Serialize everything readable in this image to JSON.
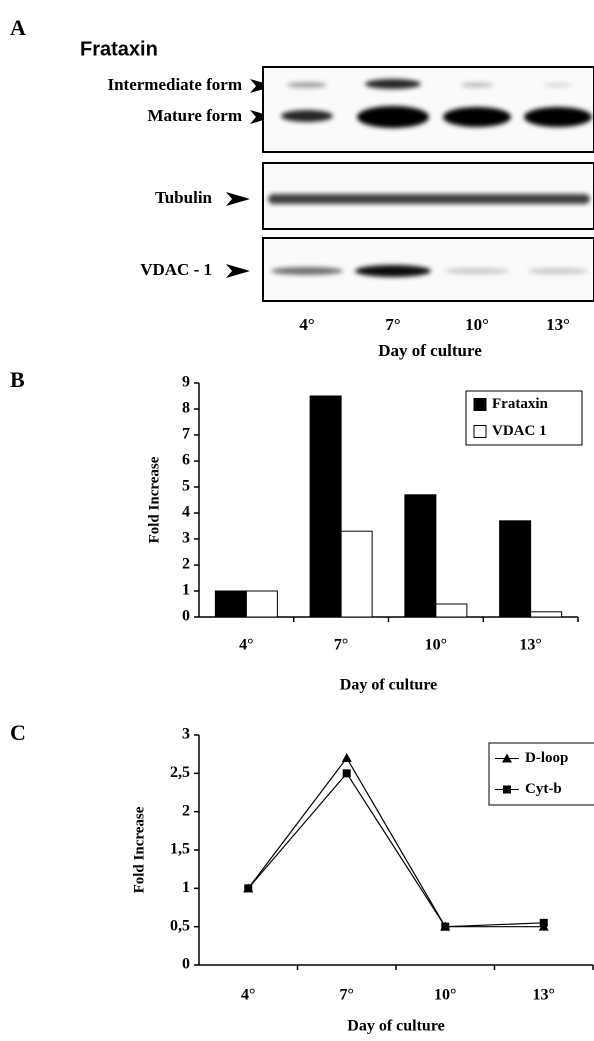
{
  "panel_labels": [
    "A",
    "B",
    "C"
  ],
  "blot": {
    "title": "Frataxin",
    "bands": [
      "Intermediate form",
      "Mature form",
      "Tubulin",
      "VDAC - 1"
    ],
    "lanes": [
      "4°",
      "7°",
      "10°",
      "13°"
    ],
    "x_label": "Day of culture"
  },
  "chart_data": [
    {
      "type": "bar",
      "y_label": "Fold Increase",
      "x_label": "Day of culture",
      "categories": [
        "4°",
        "7°",
        "10°",
        "13°"
      ],
      "series": [
        {
          "name": "Frataxin",
          "color": "#000000",
          "values": [
            1,
            8.5,
            4.7,
            3.7
          ]
        },
        {
          "name": "VDAC 1",
          "color": "#ffffff",
          "values": [
            1,
            3.3,
            0.5,
            0.2
          ]
        }
      ],
      "ylim": [
        0,
        9
      ],
      "yticks": [
        0,
        1,
        2,
        3,
        4,
        5,
        6,
        7,
        8,
        9
      ],
      "legend": "top-right"
    },
    {
      "type": "line",
      "y_label": "Fold Increase",
      "x_label": "Day of culture",
      "categories": [
        "4°",
        "7°",
        "10°",
        "13°"
      ],
      "series": [
        {
          "name": "D-loop",
          "color": "#000000",
          "marker": "triangle",
          "values": [
            1,
            2.7,
            0.5,
            0.5
          ]
        },
        {
          "name": "Cyt-b",
          "color": "#000000",
          "marker": "square",
          "values": [
            1,
            2.5,
            0.5,
            0.55
          ]
        }
      ],
      "ylim": [
        0,
        3
      ],
      "yticks": [
        0,
        {
          "value": 0.5,
          "label": "0,5"
        },
        1,
        {
          "value": 1.5,
          "label": "1,5"
        },
        2,
        {
          "value": 2.5,
          "label": "2,5"
        },
        3
      ],
      "legend": "top-right"
    }
  ]
}
